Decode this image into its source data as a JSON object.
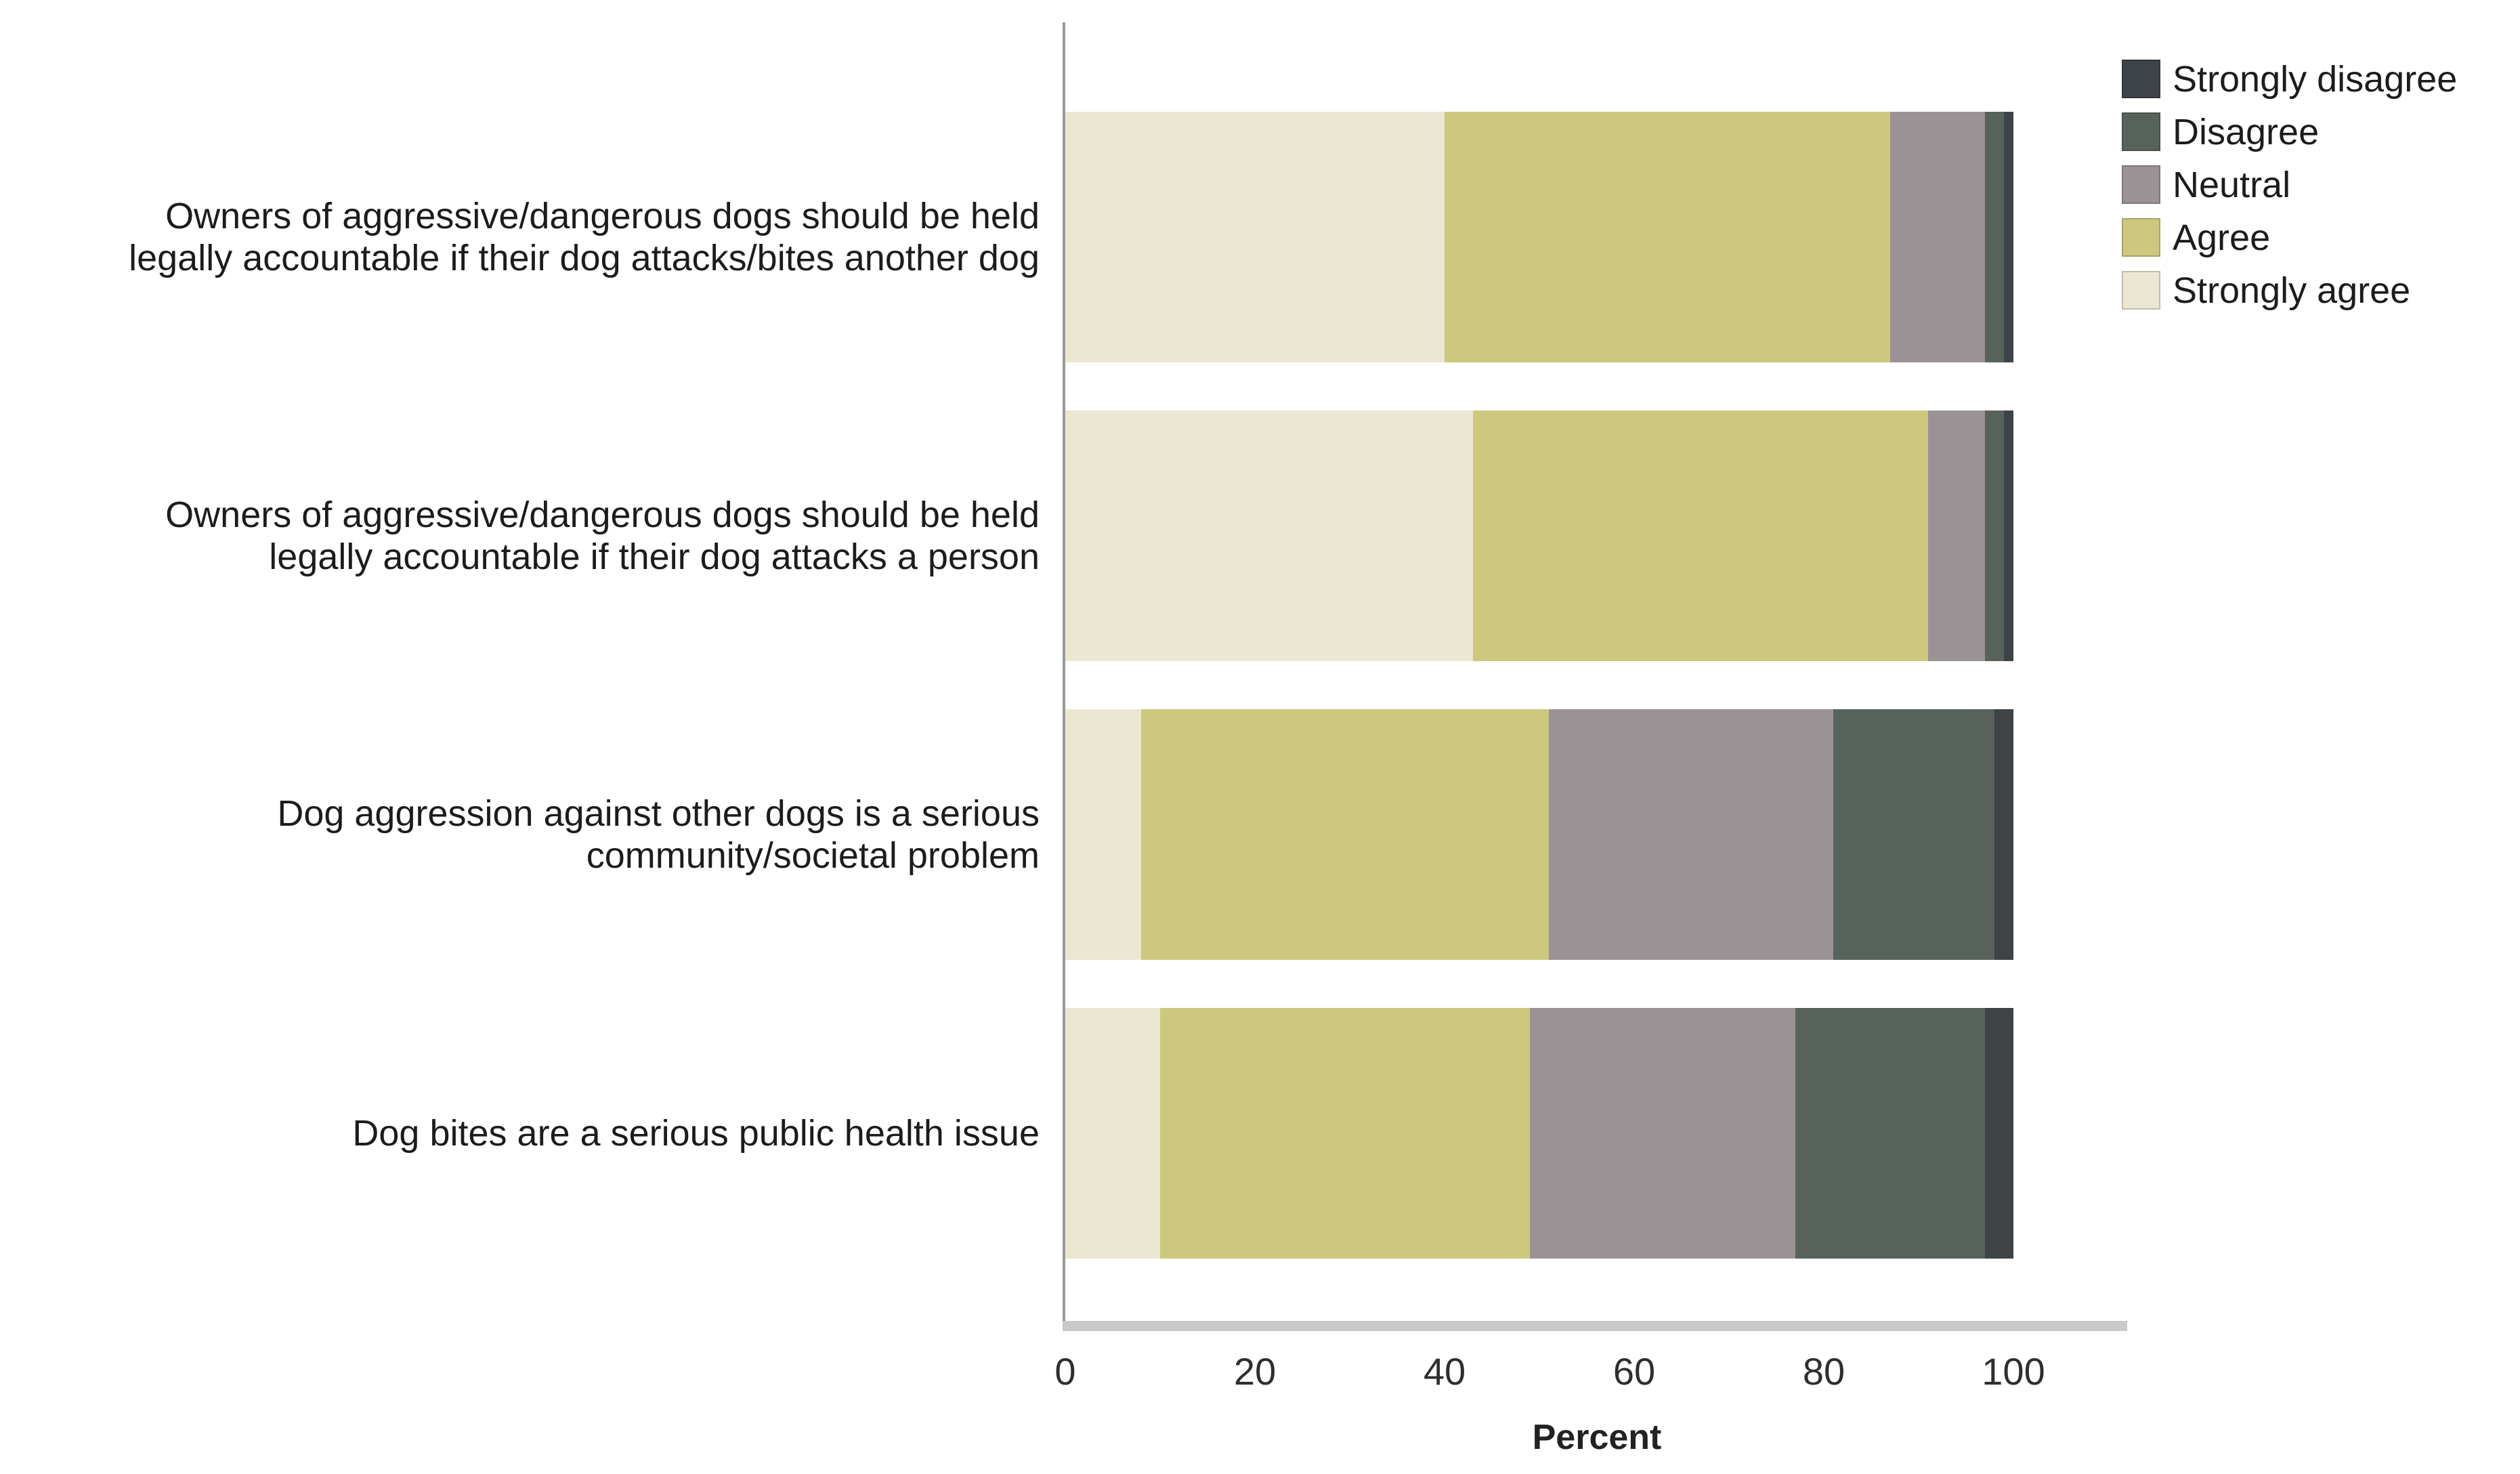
{
  "figure": {
    "background": "#ffffff"
  },
  "chart_data": {
    "type": "bar",
    "orientation": "horizontal",
    "stacked": true,
    "title": "",
    "xlabel": "Percent",
    "ylabel": "",
    "xlim": [
      0,
      110
    ],
    "x_ticks": [
      0,
      20,
      40,
      60,
      80,
      100
    ],
    "grid": false,
    "legend_position": "top-right",
    "legend_order": [
      "Strongly disagree",
      "Disagree",
      "Neutral",
      "Agree",
      "Strongly agree"
    ],
    "categories": [
      "Owners of aggressive/dangerous dogs should be held legally accountable if their dog attacks/bites another dog",
      "Owners of aggressive/dangerous dogs should be held legally accountable if their dog attacks a person",
      "Dog aggression against other dogs is a serious community/societal problem",
      "Dog bites are a serious public health issue"
    ],
    "category_lines": [
      [
        "Owners of aggressive/dangerous dogs should be held",
        "legally accountable if their dog attacks/bites another dog"
      ],
      [
        "Owners of aggressive/dangerous dogs should be held",
        "legally accountable if their dog attacks a person"
      ],
      [
        "Dog aggression against other dogs is a serious",
        "community/societal problem"
      ],
      [
        "Dog bites are a serious public health issue"
      ]
    ],
    "series": [
      {
        "name": "Strongly agree",
        "color": "#ECE7D1",
        "values": [
          40,
          43,
          8,
          10
        ]
      },
      {
        "name": "Agree",
        "color": "#CEC87E",
        "values": [
          47,
          48,
          43,
          39
        ]
      },
      {
        "name": "Neutral",
        "color": "#9B9295",
        "values": [
          10,
          6,
          30,
          28
        ]
      },
      {
        "name": "Disagree",
        "color": "#57635A",
        "values": [
          2,
          2,
          17,
          20
        ]
      },
      {
        "name": "Strongly disagree",
        "color": "#3E4347",
        "values": [
          1,
          1,
          2,
          3
        ]
      }
    ],
    "units": "percent"
  }
}
